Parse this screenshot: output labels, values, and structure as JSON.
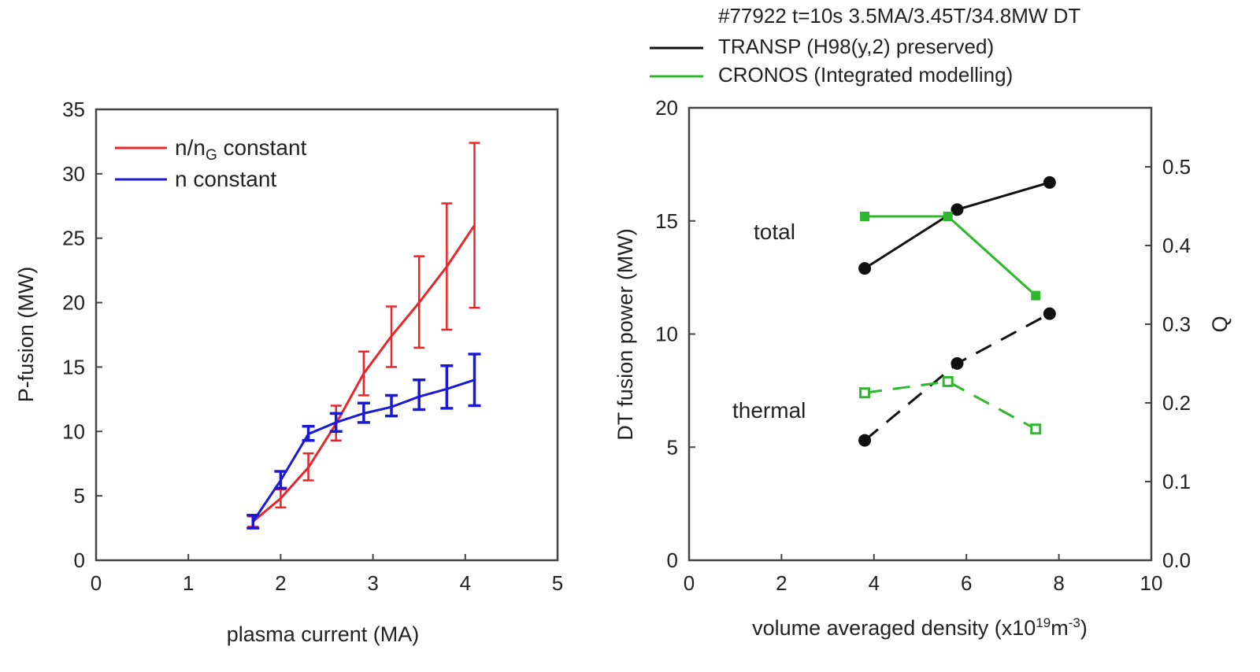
{
  "chart_data": [
    {
      "type": "line",
      "xlabel": "plasma current (MA)",
      "ylabel": "P-fusion (MW)",
      "xlim": [
        0,
        5
      ],
      "ylim": [
        0,
        35
      ],
      "xticks": [
        0,
        1,
        2,
        3,
        4,
        5
      ],
      "yticks": [
        0,
        5,
        10,
        15,
        20,
        25,
        30,
        35
      ],
      "grid": false,
      "legend_placement": "top-left",
      "series": [
        {
          "name": "n/nG constant",
          "name_main": "n/n",
          "name_sub": "G",
          "name_rest": " constant",
          "color": "#e8262a",
          "x": [
            1.7,
            2.0,
            2.3,
            2.6,
            2.9,
            3.2,
            3.5,
            3.8,
            4.1
          ],
          "y": [
            3.0,
            4.8,
            7.2,
            10.6,
            14.5,
            17.4,
            20.0,
            22.8,
            26.0
          ],
          "y_low": [
            2.6,
            4.1,
            6.2,
            9.3,
            12.8,
            15.0,
            16.5,
            17.9,
            19.6
          ],
          "y_high": [
            3.4,
            5.5,
            8.3,
            12.0,
            16.2,
            19.7,
            23.6,
            27.7,
            32.4
          ]
        },
        {
          "name": "n constant",
          "color": "#1a1ad6",
          "x": [
            1.7,
            2.0,
            2.3,
            2.6,
            2.9,
            3.2,
            3.5,
            3.8,
            4.1
          ],
          "y": [
            3.0,
            6.2,
            9.8,
            10.7,
            11.4,
            11.9,
            12.7,
            13.3,
            14.0
          ],
          "y_low": [
            2.5,
            5.6,
            9.3,
            10.0,
            10.7,
            11.2,
            11.7,
            11.8,
            12.0
          ],
          "y_high": [
            3.5,
            6.9,
            10.4,
            11.4,
            12.2,
            12.8,
            14.0,
            15.1,
            16.0
          ]
        }
      ]
    },
    {
      "type": "line",
      "title": "#77922 t=10s 3.5MA/3.45T/34.8MW DT",
      "xlabel_main": "volume averaged density (x10",
      "xlabel_sup1": "19",
      "xlabel_mid": "m",
      "xlabel_sup2": "-3",
      "xlabel_end": ")",
      "ylabel": "DT fusion power (MW)",
      "y2label": "Q",
      "xlim": [
        0,
        10
      ],
      "ylim": [
        0,
        20
      ],
      "y2lim": [
        0,
        0.575
      ],
      "xticks": [
        0,
        2,
        4,
        6,
        8,
        10
      ],
      "yticks": [
        0,
        5,
        10,
        15,
        20
      ],
      "y2ticks": [
        "0.0",
        "0.1",
        "0.2",
        "0.3",
        "0.4",
        "0.5"
      ],
      "grid": false,
      "legend_placement": "above",
      "legend": [
        {
          "name": "TRANSP (H98(y,2) preserved)",
          "color": "#111111"
        },
        {
          "name": "CRONOS (Integrated modelling)",
          "color": "#2db82d"
        }
      ],
      "annotations": [
        "total",
        "thermal"
      ],
      "series": [
        {
          "model": "TRANSP",
          "component": "total",
          "color": "#111111",
          "dashed": false,
          "marker": "circle",
          "x": [
            3.8,
            5.8,
            7.8
          ],
          "y": [
            12.9,
            15.5,
            16.7
          ]
        },
        {
          "model": "TRANSP",
          "component": "thermal",
          "color": "#111111",
          "dashed": true,
          "marker": "circle",
          "x": [
            3.8,
            5.8,
            7.8
          ],
          "y": [
            5.3,
            8.7,
            10.9
          ]
        },
        {
          "model": "CRONOS",
          "component": "total",
          "color": "#2db82d",
          "dashed": false,
          "marker": "square",
          "x": [
            3.8,
            5.6,
            7.5
          ],
          "y": [
            15.2,
            15.2,
            11.7
          ]
        },
        {
          "model": "CRONOS",
          "component": "thermal",
          "color": "#2db82d",
          "dashed": true,
          "marker": "square-open",
          "x": [
            3.8,
            5.6,
            7.5
          ],
          "y": [
            7.4,
            7.9,
            5.8
          ]
        }
      ]
    }
  ]
}
